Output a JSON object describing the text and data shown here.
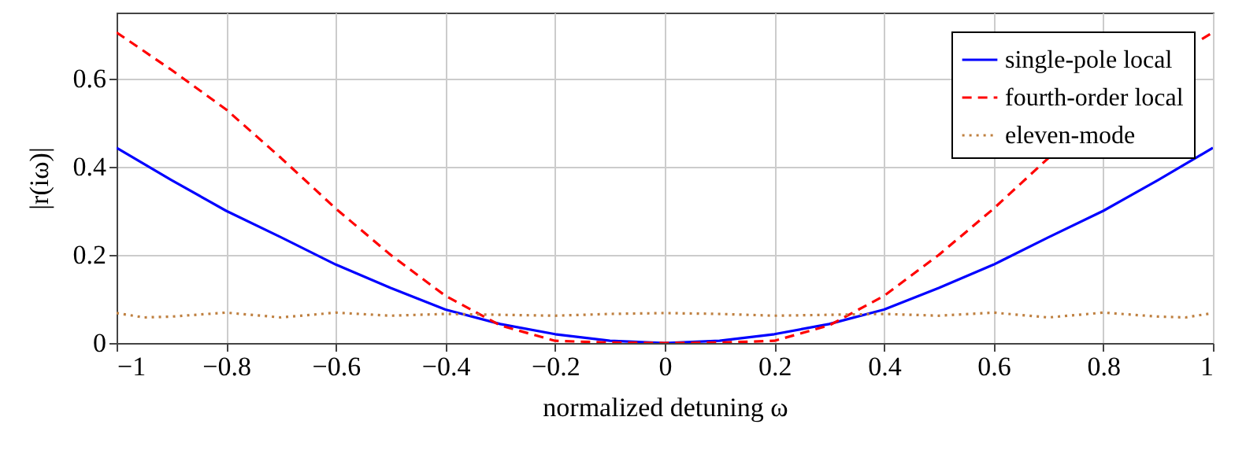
{
  "chart_data": {
    "type": "line",
    "xlabel": "normalized detuning ω",
    "ylabel": "|r(iω)|",
    "x": [
      -1,
      -0.9,
      -0.8,
      -0.7,
      -0.6,
      -0.5,
      -0.4,
      -0.3,
      -0.2,
      -0.1,
      0,
      0.1,
      0.2,
      0.3,
      0.4,
      0.5,
      0.6,
      0.7,
      0.8,
      0.9,
      1
    ],
    "series": [
      {
        "name": "single-pole local",
        "color": "#0000ff",
        "line_style": "solid",
        "values": [
          0.443,
          0.37,
          0.3,
          0.24,
          0.178,
          0.125,
          0.076,
          0.043,
          0.02,
          0.005,
          0,
          0.005,
          0.02,
          0.043,
          0.076,
          0.125,
          0.178,
          0.24,
          0.3,
          0.37,
          0.443
        ]
      },
      {
        "name": "fourth-order local",
        "color": "#ff0000",
        "line_style": "dashed",
        "x": [
          -1,
          -0.9,
          -0.8,
          -0.7,
          -0.6,
          -0.5,
          -0.4,
          -0.3,
          -0.2,
          -0.1,
          0,
          0.1,
          0.2,
          0.3,
          0.4,
          0.5,
          0.6,
          0.7,
          0.8,
          0.98,
          1
        ],
        "values": [
          0.705,
          0.62,
          0.53,
          0.42,
          0.305,
          0.2,
          0.107,
          0.04,
          0.005,
          0.001,
          0,
          0.001,
          0.005,
          0.04,
          0.107,
          0.2,
          0.305,
          0.42,
          null,
          0.69,
          0.705
        ]
      },
      {
        "name": "eleven-mode",
        "color": "#bf8040",
        "line_style": "dotted",
        "x": [
          -1,
          -0.95,
          -0.9,
          -0.8,
          -0.7,
          -0.6,
          -0.5,
          -0.4,
          -0.3,
          -0.2,
          -0.1,
          0,
          0.1,
          0.2,
          0.3,
          0.4,
          0.5,
          0.6,
          0.7,
          0.8,
          0.9,
          0.95,
          1
        ],
        "values": [
          0.068,
          0.058,
          0.06,
          0.069,
          0.058,
          0.069,
          0.062,
          0.066,
          0.064,
          0.062,
          0.066,
          0.068,
          0.066,
          0.062,
          0.064,
          0.066,
          0.062,
          0.069,
          0.058,
          0.069,
          0.06,
          0.058,
          0.068
        ]
      }
    ],
    "xlim": [
      -1,
      1
    ],
    "xticks": [
      -1,
      -0.8,
      -0.6,
      -0.4,
      -0.2,
      0,
      0.2,
      0.4,
      0.6,
      0.8,
      1
    ],
    "ylim": [
      0,
      0.75
    ],
    "yticks": [
      0,
      0.2,
      0.4,
      0.6
    ],
    "grid": true,
    "legend": "top right"
  }
}
